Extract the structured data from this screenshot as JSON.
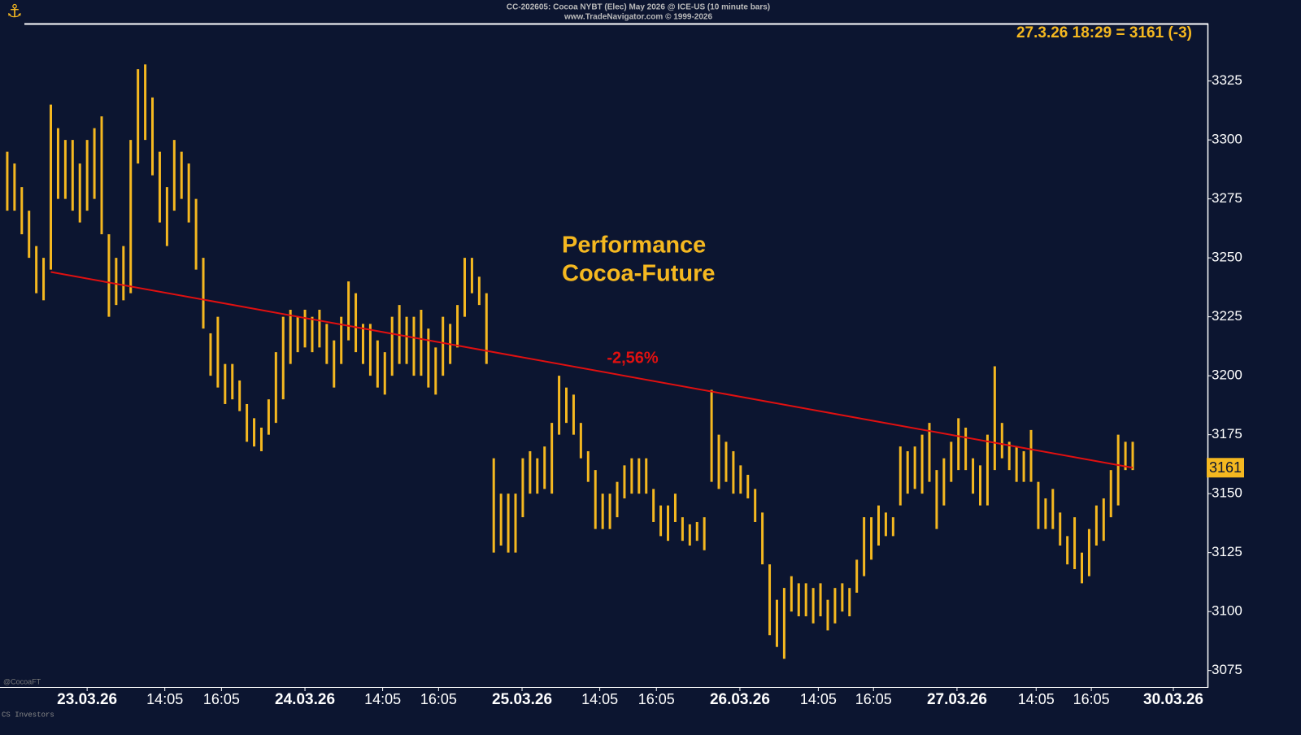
{
  "chart_data": {
    "type": "ohlc",
    "title": "CC-202605:  Cocoa NYBT (Elec) May 2026 @ ICE-US  (10 minute bars)",
    "subtitle": "www.TradeNavigator.com © 1999-2026",
    "last_label": "27.3.26 18:29 = 3161 (-3)",
    "last_price": {
      "value": 3161,
      "label": "3161"
    },
    "annotation_lines": [
      "Performance",
      "Cocoa-Future"
    ],
    "watermark": "@CocoaFT",
    "footer": "CS Investors",
    "color": "#f5b820",
    "high": [
      3295,
      3290,
      3280,
      3270,
      3255,
      3250,
      3315,
      3305,
      3300,
      3300,
      3290,
      3300,
      3305,
      3310,
      3260,
      3250,
      3255,
      3300,
      3330,
      3332,
      3318,
      3295,
      3280,
      3300,
      3295,
      3290,
      3275,
      3250,
      3218,
      3225,
      3205,
      3205,
      3198,
      3188,
      3182,
      3178,
      3190,
      3210,
      3225,
      3228,
      3225,
      3228,
      3225,
      3228,
      3222,
      3215,
      3225,
      3240,
      3235,
      3222,
      3222,
      3215,
      3210,
      3225,
      3230,
      3225,
      3225,
      3228,
      3220,
      3212,
      3225,
      3222,
      3230,
      3250,
      3250,
      3242,
      3235,
      3165,
      3150,
      3150,
      3150,
      3165,
      3168,
      3165,
      3170,
      3180,
      3200,
      3195,
      3192,
      3180,
      3168,
      3160,
      3150,
      3150,
      3155,
      3162,
      3165,
      3165,
      3165,
      3152,
      3145,
      3145,
      3150,
      3140,
      3137,
      3138,
      3140,
      3194,
      3175,
      3172,
      3168,
      3162,
      3158,
      3152,
      3142,
      3120,
      3105,
      3110,
      3115,
      3112,
      3112,
      3110,
      3112,
      3105,
      3110,
      3112,
      3110,
      3122,
      3140,
      3140,
      3145,
      3142,
      3140,
      3170,
      3168,
      3170,
      3175,
      3180,
      3160,
      3165,
      3172,
      3182,
      3178,
      3165,
      3162,
      3175,
      3204,
      3180,
      3172,
      3170,
      3168,
      3177,
      3155,
      3148,
      3152,
      3142,
      3132,
      3140,
      3125,
      3135,
      3145,
      3148,
      3160,
      3175,
      3172,
      3172
    ],
    "low": [
      3270,
      3270,
      3260,
      3250,
      3235,
      3232,
      3245,
      3275,
      3275,
      3270,
      3265,
      3270,
      3275,
      3260,
      3225,
      3230,
      3232,
      3235,
      3290,
      3300,
      3285,
      3265,
      3255,
      3270,
      3275,
      3265,
      3245,
      3220,
      3200,
      3195,
      3188,
      3190,
      3185,
      3172,
      3170,
      3168,
      3175,
      3180,
      3190,
      3205,
      3210,
      3212,
      3210,
      3212,
      3205,
      3195,
      3205,
      3215,
      3210,
      3205,
      3200,
      3195,
      3192,
      3200,
      3205,
      3205,
      3200,
      3200,
      3195,
      3192,
      3200,
      3205,
      3212,
      3225,
      3235,
      3230,
      3205,
      3125,
      3128,
      3125,
      3125,
      3140,
      3150,
      3150,
      3152,
      3150,
      3175,
      3180,
      3175,
      3165,
      3155,
      3135,
      3135,
      3135,
      3140,
      3148,
      3150,
      3150,
      3150,
      3138,
      3132,
      3130,
      3138,
      3130,
      3128,
      3130,
      3126,
      3155,
      3152,
      3155,
      3150,
      3150,
      3148,
      3138,
      3120,
      3090,
      3085,
      3080,
      3100,
      3098,
      3098,
      3095,
      3098,
      3092,
      3095,
      3100,
      3098,
      3108,
      3115,
      3122,
      3128,
      3132,
      3132,
      3145,
      3150,
      3152,
      3150,
      3155,
      3135,
      3145,
      3155,
      3160,
      3160,
      3150,
      3145,
      3145,
      3160,
      3165,
      3160,
      3155,
      3155,
      3155,
      3135,
      3135,
      3135,
      3128,
      3120,
      3118,
      3112,
      3115,
      3128,
      3130,
      3140,
      3145,
      3160,
      3160
    ],
    "trendline": {
      "x": [
        7,
        156
      ],
      "y": [
        3244,
        3161
      ],
      "color": "#e01010",
      "label": "-2,56%"
    },
    "xlim": [
      0,
      166.3
    ],
    "xticks": [
      {
        "value": 12,
        "label": "23.03.26"
      },
      {
        "value": 22.7,
        "label": "14:05"
      },
      {
        "value": 30.5,
        "label": "16:05"
      },
      {
        "value": 42,
        "label": "24.03.26"
      },
      {
        "value": 52.7,
        "label": "14:05"
      },
      {
        "value": 60.4,
        "label": "16:05"
      },
      {
        "value": 71.9,
        "label": "25.03.26"
      },
      {
        "value": 82.6,
        "label": "14:05"
      },
      {
        "value": 90.4,
        "label": "16:05"
      },
      {
        "value": 101.9,
        "label": "26.03.26"
      },
      {
        "value": 112.7,
        "label": "14:05"
      },
      {
        "value": 120.3,
        "label": "16:05"
      },
      {
        "value": 131.8,
        "label": "27.03.26"
      },
      {
        "value": 142.7,
        "label": "14:05"
      },
      {
        "value": 150.3,
        "label": "16:05"
      },
      {
        "value": 161.6,
        "label": "30.03.26"
      }
    ],
    "ylim": [
      3068,
      3349
    ],
    "yticks": [
      3075,
      3100,
      3125,
      3150,
      3175,
      3200,
      3225,
      3250,
      3275,
      3300,
      3325
    ]
  }
}
